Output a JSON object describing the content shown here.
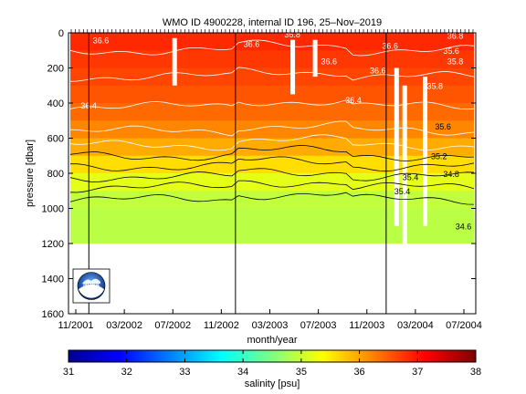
{
  "chart_data": {
    "type": "heatmap",
    "title": "WMO ID 4900228, internal ID 196, 25–Nov–2019",
    "xlabel": "month/year",
    "ylabel": "pressure [dbar]",
    "x_ticks": [
      "11/2001",
      "03/2002",
      "07/2002",
      "11/2002",
      "03/2003",
      "07/2003",
      "11/2003",
      "03/2004",
      "07/2004"
    ],
    "y_ticks": [
      0,
      200,
      400,
      600,
      800,
      1000,
      1200,
      1400,
      1600
    ],
    "ylim": [
      1600,
      0
    ],
    "colorbar": {
      "label": "salinity [psu]",
      "ticks": [
        31,
        32,
        33,
        34,
        35,
        36,
        37,
        38
      ],
      "range": [
        31,
        38
      ]
    },
    "contour_labels": [
      "36.8",
      "36.6",
      "36.6",
      "36.6",
      "36.6",
      "36.6",
      "36.4",
      "36.4",
      "35.4",
      "35.8",
      "35.6",
      "35.8",
      "35.6",
      "35.2",
      "34.8",
      "35.4",
      "36.8",
      "34.6"
    ],
    "salinity_profile": {
      "pressure_dbar": [
        0,
        100,
        200,
        300,
        400,
        500,
        600,
        700,
        800,
        900,
        1000,
        1100,
        1200
      ],
      "salinity_psu": [
        36.9,
        36.8,
        36.7,
        36.6,
        36.5,
        36.3,
        36.1,
        35.8,
        35.4,
        35.0,
        34.9,
        34.9,
        34.9
      ]
    },
    "grid": false
  },
  "logo": {
    "name": "noaa-logo",
    "text": "NOAA"
  }
}
